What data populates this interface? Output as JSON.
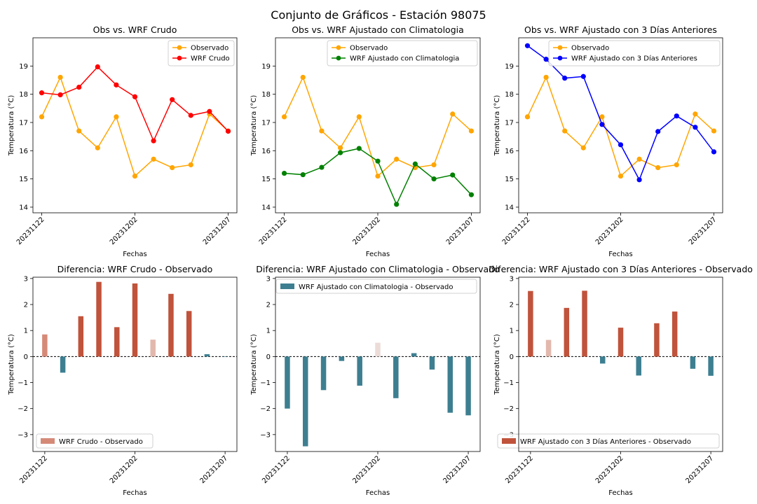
{
  "figure": {
    "title": "Conjunto de Gráficos - Estación 98075"
  },
  "colors": {
    "observed": "#ffa500",
    "wrf_raw": "#ff0000",
    "wrf_clim": "#008000",
    "wrf_prev": "#0000ff",
    "diff_pos_strong": "#c0533b",
    "diff_pos_mid": "#d58a78",
    "diff_pos_light": "#e2b8ad",
    "diff_pos_faint": "#ecdcd8",
    "diff_neg": "#3d7f91"
  },
  "chart_data": [
    {
      "id": "p1",
      "type": "line",
      "title": "Obs vs. WRF Crudo",
      "xlabel": "Fechas",
      "ylabel": "Temperatura (°C)",
      "x": [
        "20231122",
        "20231123",
        "20231124",
        "20231125",
        "20231126",
        "20231202",
        "20231203",
        "20231204",
        "20231205",
        "20231206",
        "20231207"
      ],
      "xticks": [
        "20231122",
        "20231202",
        "20231207"
      ],
      "yticks": [
        "14",
        "15",
        "16",
        "17",
        "18",
        "19"
      ],
      "ylim": [
        13.8,
        20.0
      ],
      "legend": "top-right",
      "series": [
        {
          "name": "Observado",
          "color": "#ffa500",
          "values": [
            17.2,
            18.6,
            16.7,
            16.1,
            17.2,
            15.1,
            15.7,
            15.4,
            15.5,
            17.3,
            16.7
          ]
        },
        {
          "name": "WRF Crudo",
          "color": "#ff0000",
          "values": [
            18.05,
            17.98,
            18.25,
            18.97,
            18.33,
            17.91,
            16.35,
            17.81,
            17.25,
            17.39,
            16.69
          ]
        }
      ]
    },
    {
      "id": "p2",
      "type": "line",
      "title": "Obs vs. WRF Ajustado con Climatologia",
      "xlabel": "Fechas",
      "ylabel": "Temperatura (°C)",
      "x": [
        "20231122",
        "20231123",
        "20231124",
        "20231125",
        "20231126",
        "20231202",
        "20231203",
        "20231204",
        "20231205",
        "20231206",
        "20231207"
      ],
      "xticks": [
        "20231122",
        "20231202",
        "20231207"
      ],
      "yticks": [
        "14",
        "15",
        "16",
        "17",
        "18",
        "19"
      ],
      "ylim": [
        13.8,
        20.0
      ],
      "legend": "top-right",
      "series": [
        {
          "name": "Observado",
          "color": "#ffa500",
          "values": [
            17.2,
            18.6,
            16.7,
            16.1,
            17.2,
            15.1,
            15.7,
            15.4,
            15.5,
            17.3,
            16.7
          ]
        },
        {
          "name": "WRF Ajustado con Climatologia",
          "color": "#008000",
          "values": [
            15.2,
            15.15,
            15.41,
            15.93,
            16.08,
            15.63,
            14.1,
            15.53,
            15.0,
            15.14,
            14.44
          ]
        }
      ]
    },
    {
      "id": "p3",
      "type": "line",
      "title": "Obs vs. WRF Ajustado con 3 Días Anteriores",
      "xlabel": "Fechas",
      "ylabel": "Temperatura (°C)",
      "x": [
        "20231122",
        "20231123",
        "20231124",
        "20231125",
        "20231126",
        "20231202",
        "20231203",
        "20231204",
        "20231205",
        "20231206",
        "20231207"
      ],
      "xticks": [
        "20231122",
        "20231202",
        "20231207"
      ],
      "yticks": [
        "14",
        "15",
        "16",
        "17",
        "18",
        "19"
      ],
      "ylim": [
        13.8,
        20.0
      ],
      "legend": "top-right",
      "series": [
        {
          "name": "Observado",
          "color": "#ffa500",
          "values": [
            17.2,
            18.6,
            16.7,
            16.1,
            17.2,
            15.1,
            15.7,
            15.4,
            15.5,
            17.3,
            16.7
          ]
        },
        {
          "name": "WRF Ajustado con 3 Días Anteriores",
          "color": "#0000ff",
          "values": [
            19.72,
            19.24,
            18.57,
            18.63,
            16.93,
            16.21,
            14.97,
            16.68,
            17.23,
            16.83,
            15.96
          ]
        }
      ]
    },
    {
      "id": "p4",
      "type": "bar",
      "title": "Diferencia: WRF Crudo - Observado",
      "xlabel": "Fechas",
      "ylabel": "Temperatura (°C)",
      "x": [
        "20231122",
        "20231123",
        "20231124",
        "20231125",
        "20231126",
        "20231202",
        "20231203",
        "20231204",
        "20231205",
        "20231206",
        "20231207"
      ],
      "xticks": [
        "20231122",
        "20231202",
        "20231207"
      ],
      "yticks": [
        "−3",
        "−2",
        "−1",
        "0",
        "1",
        "2",
        "3"
      ],
      "ylim": [
        -3.65,
        3.05
      ],
      "legend": "bottom-left",
      "legend_label": "WRF Crudo - Observado",
      "legend_color": "#d58a78",
      "values": [
        0.85,
        -0.62,
        1.55,
        2.87,
        1.13,
        2.81,
        0.65,
        2.41,
        1.75,
        0.09,
        -0.01
      ],
      "bar_colors": [
        "#d58a78",
        "#3d7f91",
        "#c0533b",
        "#c0533b",
        "#c0533b",
        "#c0533b",
        "#e2b8ad",
        "#c0533b",
        "#c0533b",
        "#3d7f91",
        "#3d7f91"
      ]
    },
    {
      "id": "p5",
      "type": "bar",
      "title": "Diferencia: WRF Ajustado con Climatologia - Observado",
      "xlabel": "Fechas",
      "ylabel": "Temperatura (°C)",
      "x": [
        "20231122",
        "20231123",
        "20231124",
        "20231125",
        "20231126",
        "20231202",
        "20231203",
        "20231204",
        "20231205",
        "20231206",
        "20231207"
      ],
      "xticks": [
        "20231122",
        "20231202",
        "20231207"
      ],
      "yticks": [
        "−3",
        "−2",
        "−1",
        "0",
        "1",
        "2",
        "3"
      ],
      "ylim": [
        -3.65,
        3.05
      ],
      "legend": "top-right",
      "legend_label": "WRF Ajustado con Climatologia - Observado",
      "legend_color": "#3d7f91",
      "values": [
        -2.0,
        -3.45,
        -1.29,
        -0.17,
        -1.12,
        0.53,
        -1.6,
        0.13,
        -0.5,
        -2.16,
        -2.26
      ],
      "bar_colors": [
        "#3d7f91",
        "#3d7f91",
        "#3d7f91",
        "#3d7f91",
        "#3d7f91",
        "#ecdcd8",
        "#3d7f91",
        "#3d7f91",
        "#3d7f91",
        "#3d7f91",
        "#3d7f91"
      ]
    },
    {
      "id": "p6",
      "type": "bar",
      "title": "Diferencia: WRF Ajustado con 3 Días Anteriores - Observado",
      "xlabel": "Fechas",
      "ylabel": "Temperatura (°C)",
      "x": [
        "20231122",
        "20231123",
        "20231124",
        "20231125",
        "20231126",
        "20231202",
        "20231203",
        "20231204",
        "20231205",
        "20231206",
        "20231207"
      ],
      "xticks": [
        "20231122",
        "20231202",
        "20231207"
      ],
      "yticks": [
        "−3",
        "−2",
        "−1",
        "0",
        "1",
        "2",
        "3"
      ],
      "ylim": [
        -3.65,
        3.05
      ],
      "legend": "bottom-right",
      "legend_label": "WRF Ajustado con 3 Días Anteriores - Observado",
      "legend_color": "#c0533b",
      "values": [
        2.52,
        0.64,
        1.87,
        2.53,
        -0.27,
        1.11,
        -0.73,
        1.28,
        1.73,
        -0.47,
        -0.74
      ],
      "bar_colors": [
        "#c0533b",
        "#e2b8ad",
        "#c0533b",
        "#c0533b",
        "#3d7f91",
        "#c0533b",
        "#3d7f91",
        "#c0533b",
        "#c0533b",
        "#3d7f91",
        "#3d7f91"
      ]
    }
  ]
}
